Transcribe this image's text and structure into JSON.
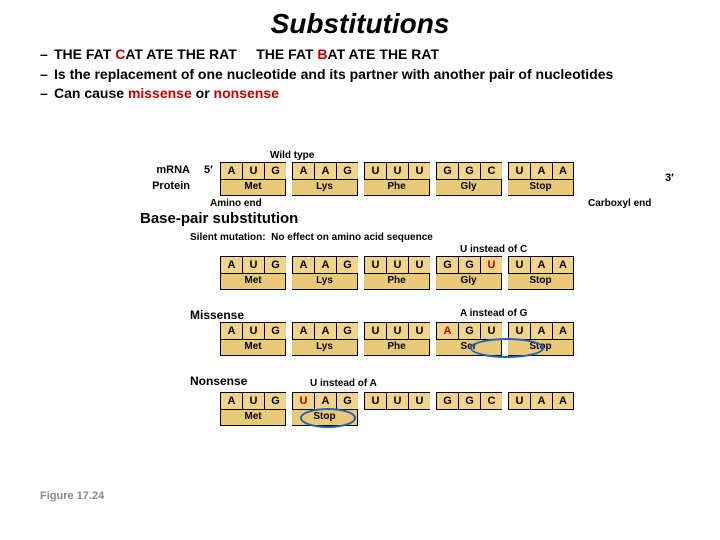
{
  "title": "Substitutions",
  "bullets": {
    "b1a": "THE FAT ",
    "b1c": "C",
    "b1b": "AT ATE THE RAT     THE FAT ",
    "b1d": "B",
    "b1e": "AT ATE THE RAT",
    "b2": "Is the replacement of one nucleotide and its partner with another pair of nucleotides",
    "b3a": "Can cause ",
    "b3b": "missense",
    "b3c": " or ",
    "b3d": "nonsense"
  },
  "labels": {
    "wildtype": "Wild type",
    "mrna": "mRNA",
    "protein": "Protein",
    "aminoend": "Amino end",
    "carboxylend": "Carboxyl end",
    "bps": "Base-pair substitution",
    "silent": "Silent mutation:  No effect on amino acid sequence",
    "uforc": "U instead of C",
    "missense": "Missense",
    "aforg": "A instead of G",
    "nonsense": "Nonsense",
    "ufora": "U instead of A",
    "five": "5′",
    "three": "3′",
    "figref": "Figure 17.24"
  },
  "seq": {
    "wt": [
      "A",
      "U",
      "G",
      "A",
      "A",
      "G",
      "U",
      "U",
      "U",
      "G",
      "G",
      "C",
      "U",
      "A",
      "A"
    ],
    "sil": [
      "A",
      "U",
      "G",
      "A",
      "A",
      "G",
      "U",
      "U",
      "U",
      "G",
      "G",
      "U",
      "U",
      "A",
      "A"
    ],
    "mis": [
      "A",
      "U",
      "G",
      "A",
      "A",
      "G",
      "U",
      "U",
      "U",
      "A",
      "G",
      "U",
      "U",
      "A",
      "A"
    ],
    "non": [
      "A",
      "U",
      "G",
      "U",
      "A",
      "G",
      "U",
      "U",
      "U",
      "G",
      "G",
      "C",
      "U",
      "A",
      "A"
    ]
  },
  "aa": {
    "wt": [
      "Met",
      "Lys",
      "Phe",
      "Gly",
      "Stop"
    ],
    "sil": [
      "Met",
      "Lys",
      "Phe",
      "Gly",
      "Stop"
    ],
    "mis": [
      "Met",
      "Lys",
      "Phe",
      "Ser",
      "Stop"
    ],
    "non": [
      "Met",
      "Stop"
    ]
  },
  "styling": {
    "nt_bg": "#f2d38c",
    "aa_bg": "#e8c978",
    "circle_color": "#2060c0",
    "red": "#c00000",
    "nt_w": 22,
    "nt_h": 18,
    "codon_gap": 6,
    "font_seq": 11,
    "font_aa": 10
  }
}
